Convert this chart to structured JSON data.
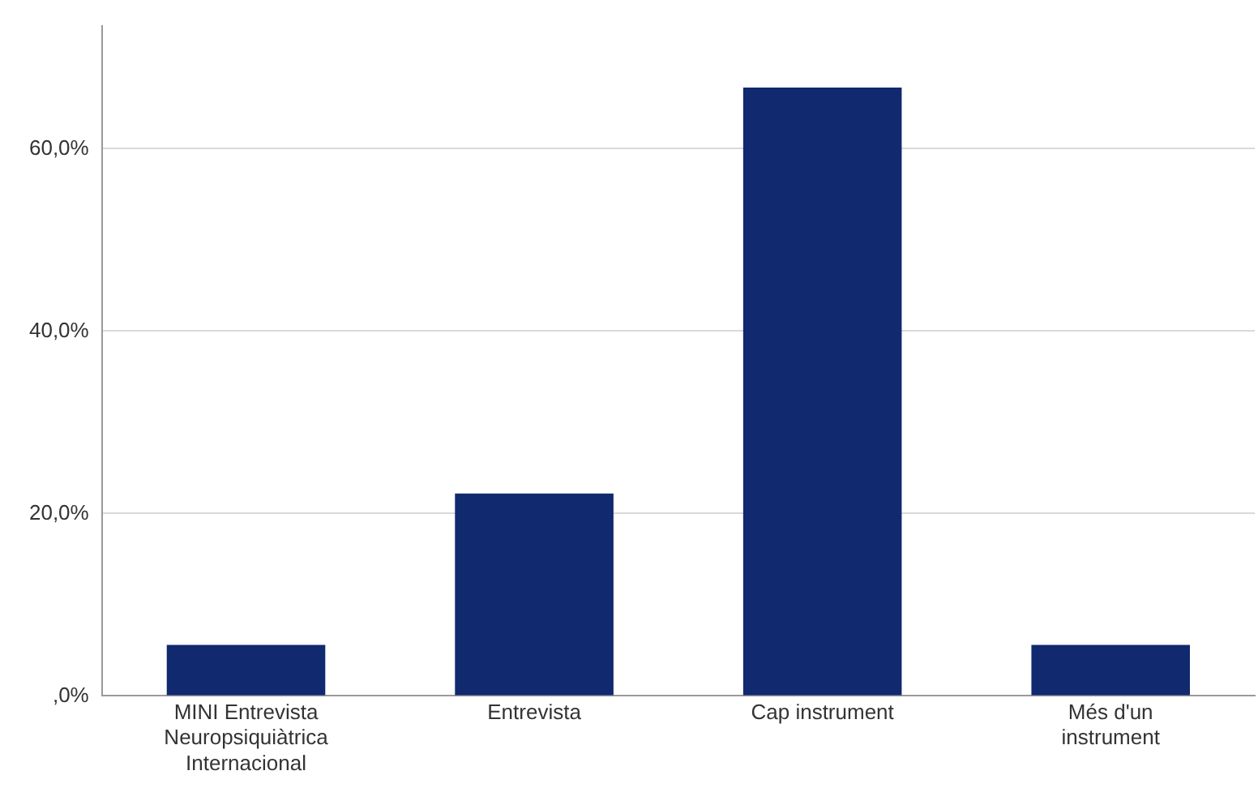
{
  "chart_data": {
    "type": "bar",
    "categories": [
      "MINI Entrevista\nNeuropsiquiàtrica\nInternacional",
      "Entrevista",
      "Cap instrument",
      "Més d'un\ninstrument"
    ],
    "values": [
      5.6,
      22.2,
      66.7,
      5.6
    ],
    "color": "#10296f",
    "ylim": [
      0,
      73.5
    ],
    "yticks": [
      {
        "value": 0,
        "label": ",0%"
      },
      {
        "value": 20,
        "label": "20,0%"
      },
      {
        "value": 40,
        "label": "40,0%"
      },
      {
        "value": 60,
        "label": "60,0%"
      }
    ],
    "grid": "y",
    "legend": false
  }
}
